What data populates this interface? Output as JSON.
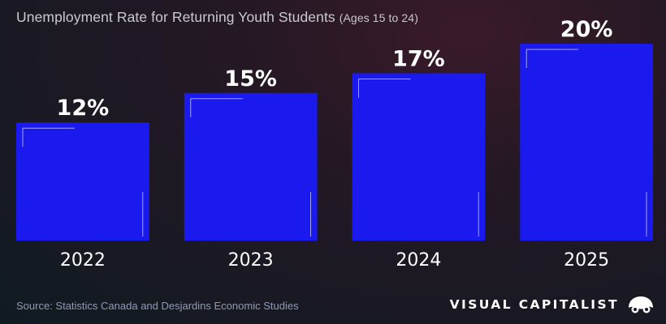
{
  "title": {
    "main": "Unemployment Rate for Returning Youth Students",
    "sub": "(Ages 15 to 24)"
  },
  "source": "Source: Statistics Canada and Desjardins Economic Studies",
  "brand": {
    "name": "VISUAL CAPITALIST",
    "icon": "visual-capitalist-logo-icon"
  },
  "colors": {
    "bar": "#1a1aee",
    "background": "#14182a"
  },
  "chart_data": {
    "type": "bar",
    "categories": [
      "2022",
      "2023",
      "2024",
      "2025"
    ],
    "values": [
      12,
      15,
      17,
      20
    ],
    "value_labels": [
      "12%",
      "15%",
      "17%",
      "20%"
    ],
    "title": "Unemployment Rate for Returning Youth Students",
    "subtitle": "(Ages 15 to 24)",
    "unit": "%",
    "ylim": [
      0,
      20
    ],
    "grid": false,
    "legend": "none"
  }
}
